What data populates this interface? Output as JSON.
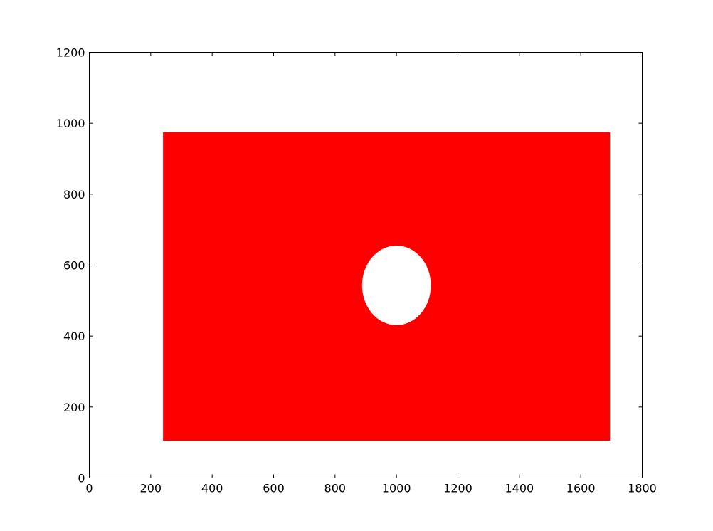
{
  "chart_data": {
    "type": "scatter",
    "title": "",
    "xlabel": "",
    "ylabel": "",
    "xlim": [
      0,
      1800
    ],
    "ylim": [
      0,
      1200
    ],
    "xticks": [
      "0",
      "200",
      "400",
      "600",
      "800",
      "1000",
      "1200",
      "1400",
      "1600",
      "1800"
    ],
    "yticks": [
      "0",
      "200",
      "400",
      "600",
      "800",
      "1000",
      "1200"
    ],
    "grid": false,
    "legend": "none",
    "series": [
      {
        "color": "#ff0000",
        "region": {
          "x_range": [
            240,
            1695
          ],
          "y_range": [
            105,
            975
          ]
        },
        "hole": {
          "shape": "ellipse",
          "center": [
            1000,
            543
          ],
          "radius_x": 112,
          "radius_y": 112
        }
      }
    ]
  }
}
